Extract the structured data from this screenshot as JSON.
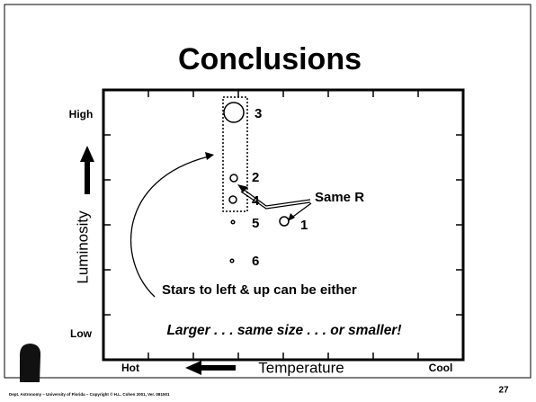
{
  "title": "Conclusions",
  "y_axis": {
    "label": "Luminosity",
    "high": "High",
    "low": "Low"
  },
  "x_axis": {
    "label": "Temperature",
    "left": "Hot",
    "right": "Cool"
  },
  "stars": [
    {
      "label": "3"
    },
    {
      "label": "2"
    },
    {
      "label": "4"
    },
    {
      "label": "5"
    },
    {
      "label": "1"
    },
    {
      "label": "6"
    }
  ],
  "annotations": {
    "same_r": "Same R",
    "either": "Stars to left & up can be either",
    "sizes": "Larger . . . same size . . . or smaller!"
  },
  "footer": {
    "credit": "Dept. Astronomy – University of Florida – Copyright © H.L. Cohen 2001, Ver. 081501",
    "page": "27"
  }
}
